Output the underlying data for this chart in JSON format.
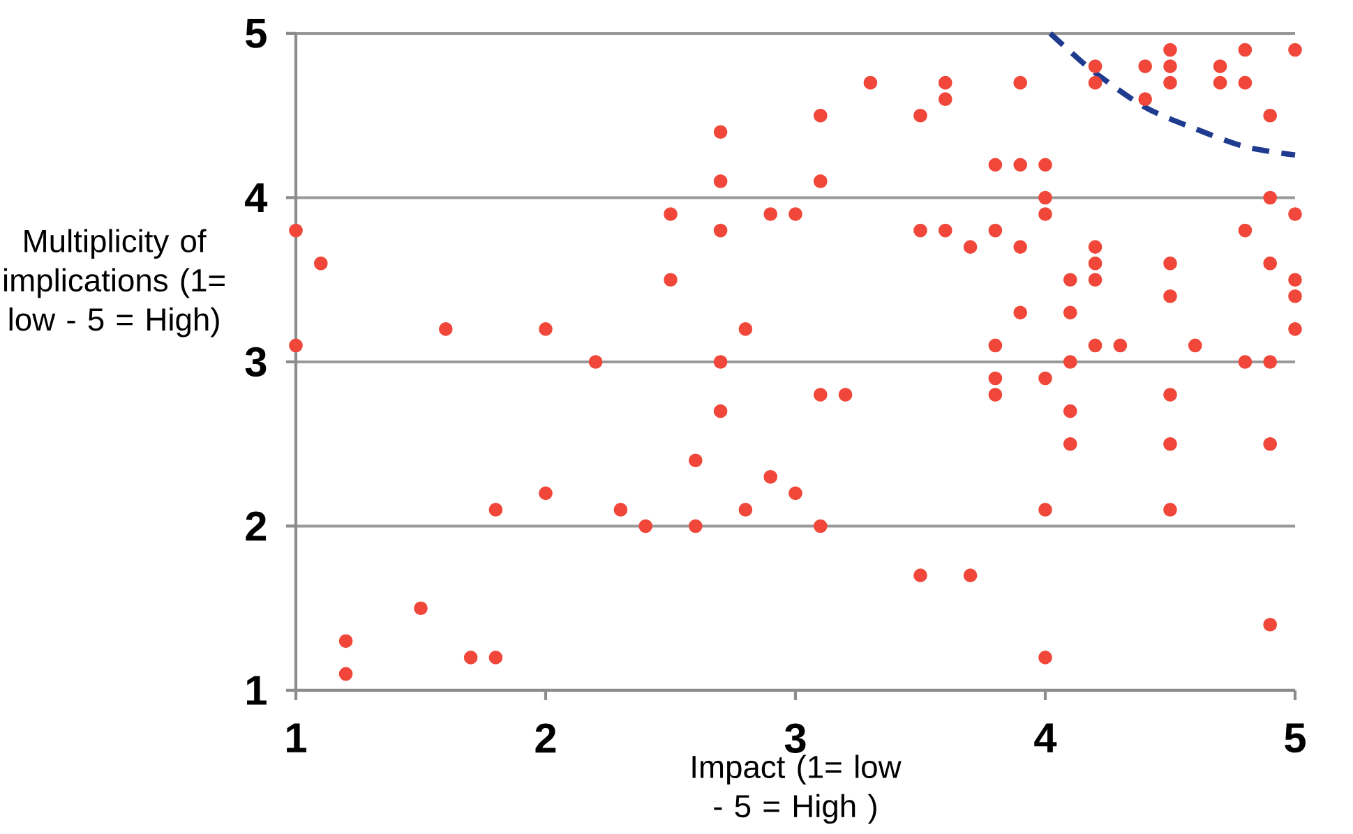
{
  "chart_data": {
    "type": "scatter",
    "xlabel": "Impact (1= low - 5 = High )",
    "ylabel": "Multiplicity of implications (1= low - 5 = High)",
    "xlim": [
      1,
      5
    ],
    "ylim": [
      1,
      5
    ],
    "xticks": [
      1,
      2,
      3,
      4,
      5
    ],
    "yticks": [
      1,
      2,
      3,
      4,
      5
    ],
    "grid": "y",
    "marker": "circle",
    "series": [
      {
        "color": "#f0473a",
        "x": [
          1,
          1,
          1.1,
          1.2,
          1.2,
          1.5,
          1.6,
          1.7,
          1.8,
          1.8,
          2,
          2,
          2.2,
          2.3,
          2.4,
          2.5,
          2.5,
          2.6,
          2.6,
          2.7,
          2.7,
          2.7,
          2.7,
          2.7,
          2.8,
          2.8,
          2.9,
          2.9,
          3,
          3,
          3.1,
          3.1,
          3.1,
          3.1,
          3.2,
          3.3,
          3.5,
          3.5,
          3.5,
          3.6,
          3.6,
          3.6,
          3.7,
          3.7,
          3.8,
          3.8,
          3.8,
          3.8,
          3.8,
          3.9,
          3.9,
          3.9,
          3.9,
          4,
          4,
          4,
          4,
          4,
          4,
          4.1,
          4.1,
          4.1,
          4.1,
          4.1,
          4.2,
          4.2,
          4.2,
          4.2,
          4.2,
          4.2,
          4.3,
          4.4,
          4.4,
          4.5,
          4.5,
          4.5,
          4.5,
          4.5,
          4.5,
          4.5,
          4.5,
          4.6,
          4.7,
          4.7,
          4.8,
          4.8,
          4.8,
          4.8,
          4.9,
          4.9,
          4.9,
          4.9,
          4.9,
          4.9,
          5,
          5,
          5,
          5,
          5
        ],
        "values": [
          3.8,
          3.1,
          3.6,
          1.3,
          1.1,
          1.5,
          3.2,
          1.2,
          1.2,
          2.1,
          3.2,
          2.2,
          3.0,
          2.1,
          2.0,
          3.9,
          3.5,
          2.4,
          2.0,
          4.4,
          4.1,
          3.8,
          3.0,
          2.7,
          3.2,
          2.1,
          3.9,
          2.3,
          3.9,
          2.2,
          4.5,
          4.1,
          2.8,
          2.0,
          2.8,
          4.7,
          4.5,
          3.8,
          1.7,
          4.7,
          4.6,
          3.8,
          3.7,
          1.7,
          4.2,
          3.8,
          3.1,
          2.9,
          2.8,
          4.7,
          4.2,
          3.7,
          3.3,
          4.2,
          4.0,
          3.9,
          2.9,
          2.1,
          1.2,
          3.5,
          3.3,
          3.0,
          2.7,
          2.5,
          4.8,
          4.7,
          3.7,
          3.6,
          3.5,
          3.1,
          3.1,
          4.8,
          4.6,
          4.9,
          4.8,
          4.7,
          3.6,
          3.4,
          2.8,
          2.5,
          2.1,
          3.1,
          4.8,
          4.7,
          4.9,
          4.7,
          3.8,
          3.0,
          4.5,
          4.0,
          3.6,
          3.0,
          2.5,
          1.4,
          4.9,
          3.9,
          3.5,
          3.4,
          3.2
        ]
      },
      {
        "type": "line",
        "color": "#1f3b8f",
        "line_style": "dashed",
        "marker": "none",
        "x": [
          4.02,
          4.1,
          4.2,
          4.4,
          4.6,
          4.8,
          5
        ],
        "values": [
          5.0,
          4.89,
          4.76,
          4.55,
          4.42,
          4.31,
          4.26
        ]
      }
    ]
  }
}
